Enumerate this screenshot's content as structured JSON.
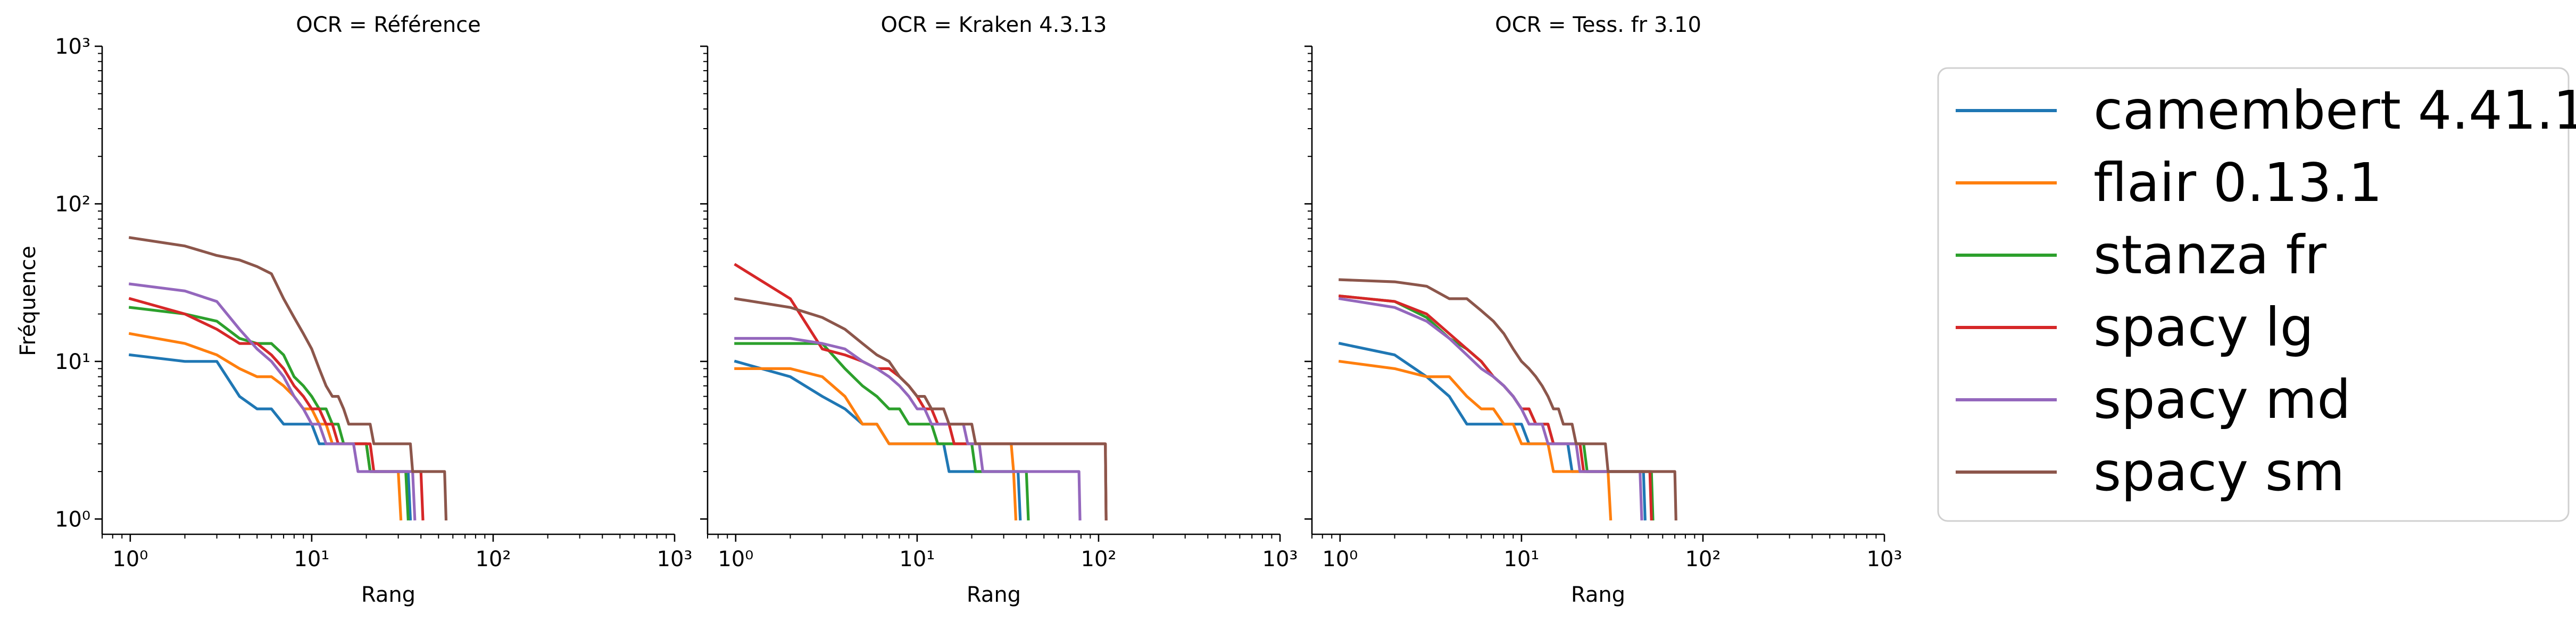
{
  "chart_data": {
    "type": "line",
    "xscale": "log",
    "yscale": "log",
    "xlim": [
      0.7,
      1000
    ],
    "ylim": [
      0.8,
      1000
    ],
    "x_ticks": [
      "10⁰",
      "10¹",
      "10²",
      "10³"
    ],
    "y_ticks": [
      "10⁰",
      "10¹",
      "10²",
      "10³"
    ],
    "ylabel": "Fréquence",
    "xlabel": "Rang",
    "grid": false,
    "legend_position": "right",
    "panels": [
      {
        "title": "OCR = Référence",
        "series": [
          {
            "name": "camembert 4.41.1",
            "color": "#1f77b4",
            "values": [
              11,
              10,
              10,
              6,
              5,
              5,
              4,
              4,
              4,
              4,
              3,
              3,
              3,
              3,
              3,
              3,
              3,
              3,
              3,
              3,
              2,
              2,
              2,
              2,
              2,
              2,
              2,
              2,
              2,
              2,
              2,
              2,
              2,
              2,
              1
            ]
          },
          {
            "name": "flair 0.13.1",
            "color": "#ff7f0e",
            "values": [
              15,
              13,
              11,
              9,
              8,
              8,
              7,
              6,
              5,
              5,
              4,
              4,
              3,
              3,
              3,
              3,
              3,
              3,
              3,
              3,
              2,
              2,
              2,
              2,
              2,
              2,
              2,
              2,
              2,
              2,
              1
            ]
          },
          {
            "name": "stanza fr",
            "color": "#2ca02c",
            "values": [
              22,
              20,
              18,
              14,
              13,
              13,
              11,
              8,
              7,
              6,
              5,
              5,
              4,
              4,
              3,
              3,
              3,
              3,
              3,
              3,
              2,
              2,
              2,
              2,
              2,
              2,
              2,
              2,
              2,
              2,
              2,
              2,
              2,
              1
            ]
          },
          {
            "name": "spacy lg",
            "color": "#d62728",
            "values": [
              25,
              20,
              16,
              13,
              13,
              11,
              9,
              7,
              6,
              5,
              5,
              4,
              4,
              3,
              3,
              3,
              3,
              3,
              3,
              3,
              3,
              2,
              2,
              2,
              2,
              2,
              2,
              2,
              2,
              2,
              2,
              2,
              2,
              2,
              2,
              2,
              2,
              2,
              2,
              2,
              1
            ]
          },
          {
            "name": "spacy md",
            "color": "#9467bd",
            "values": [
              31,
              28,
              24,
              16,
              12,
              10,
              8,
              6,
              5,
              4,
              4,
              3,
              3,
              3,
              3,
              3,
              3,
              2,
              2,
              2,
              2,
              2,
              2,
              2,
              2,
              2,
              2,
              2,
              2,
              2,
              2,
              2,
              2,
              2,
              2,
              2,
              1
            ]
          },
          {
            "name": "spacy sm",
            "color": "#8c564b",
            "values": [
              61,
              54,
              47,
              44,
              40,
              36,
              25,
              19,
              15,
              12,
              9,
              7,
              6,
              6,
              5,
              4,
              4,
              4,
              4,
              4,
              4,
              3,
              3,
              3,
              3,
              3,
              3,
              3,
              3,
              3,
              3,
              3,
              3,
              3,
              3,
              2,
              2,
              2,
              2,
              2,
              2,
              2,
              2,
              2,
              2,
              2,
              2,
              2,
              2,
              2,
              2,
              2,
              2,
              2,
              1
            ]
          }
        ]
      },
      {
        "title": "OCR = Kraken 4.3.13",
        "series": [
          {
            "name": "camembert 4.41.1",
            "color": "#1f77b4",
            "values": [
              10,
              8,
              6,
              5,
              4,
              4,
              3,
              3,
              3,
              3,
              3,
              3,
              3,
              3,
              2,
              2,
              2,
              2,
              2,
              2,
              2,
              2,
              2,
              2,
              2,
              2,
              2,
              2,
              2,
              2,
              2,
              2,
              2,
              2,
              2,
              2,
              1
            ]
          },
          {
            "name": "flair 0.13.1",
            "color": "#ff7f0e",
            "values": [
              9,
              9,
              8,
              6,
              4,
              4,
              3,
              3,
              3,
              3,
              3,
              3,
              3,
              3,
              3,
              3,
              3,
              3,
              3,
              3,
              3,
              3,
              3,
              3,
              3,
              3,
              3,
              3,
              3,
              3,
              3,
              3,
              3,
              2,
              1
            ]
          },
          {
            "name": "stanza fr",
            "color": "#2ca02c",
            "values": [
              13,
              13,
              13,
              9,
              7,
              6,
              5,
              5,
              4,
              4,
              4,
              4,
              3,
              3,
              3,
              3,
              3,
              3,
              3,
              3,
              2,
              2,
              2,
              2,
              2,
              2,
              2,
              2,
              2,
              2,
              2,
              2,
              2,
              2,
              2,
              2,
              2,
              2,
              2,
              2,
              1
            ]
          },
          {
            "name": "spacy lg",
            "color": "#d62728",
            "values": [
              41,
              25,
              12,
              11,
              10,
              9,
              9,
              8,
              7,
              6,
              5,
              5,
              4,
              4,
              4,
              3,
              3,
              3,
              3,
              3,
              3,
              3,
              3,
              3,
              3,
              3,
              3,
              3,
              3,
              3,
              3,
              3,
              3,
              3,
              3,
              3,
              3,
              3,
              3,
              3,
              3,
              3,
              3,
              3,
              3,
              3,
              3,
              3,
              3,
              3,
              3,
              3,
              3,
              3,
              3,
              3,
              3,
              3,
              3,
              3,
              3,
              3,
              3,
              3,
              3,
              3,
              3,
              3,
              3,
              3,
              3,
              3,
              3,
              3,
              3,
              3,
              3,
              3,
              3,
              3,
              3,
              3,
              3,
              3,
              3,
              3,
              3,
              3,
              3,
              3,
              3,
              3,
              3,
              3,
              3,
              3,
              3,
              3,
              3,
              3,
              3,
              3,
              3,
              3,
              3,
              3,
              3,
              3,
              3,
              1
            ]
          },
          {
            "name": "spacy md",
            "color": "#9467bd",
            "values": [
              14,
              14,
              13,
              12,
              10,
              9,
              8,
              7,
              6,
              5,
              5,
              4,
              4,
              4,
              4,
              4,
              4,
              4,
              3,
              3,
              3,
              3,
              2,
              2,
              2,
              2,
              2,
              2,
              2,
              2,
              2,
              2,
              2,
              2,
              2,
              2,
              2,
              2,
              2,
              2,
              2,
              2,
              2,
              2,
              2,
              2,
              2,
              2,
              2,
              2,
              2,
              2,
              2,
              2,
              2,
              2,
              2,
              2,
              2,
              2,
              2,
              2,
              2,
              2,
              2,
              2,
              2,
              2,
              2,
              2,
              2,
              2,
              2,
              2,
              2,
              2,
              2,
              2,
              1
            ]
          },
          {
            "name": "spacy sm",
            "color": "#8c564b",
            "values": [
              25,
              22,
              19,
              16,
              13,
              11,
              10,
              8,
              7,
              6,
              6,
              5,
              5,
              5,
              4,
              4,
              4,
              4,
              4,
              4,
              3,
              3,
              3,
              3,
              3,
              3,
              3,
              3,
              3,
              3,
              3,
              3,
              3,
              3,
              3,
              3,
              3,
              3,
              3,
              3,
              3,
              3,
              3,
              3,
              3,
              3,
              3,
              3,
              3,
              3,
              3,
              3,
              3,
              3,
              3,
              3,
              3,
              3,
              3,
              3,
              3,
              3,
              3,
              3,
              3,
              3,
              3,
              3,
              3,
              3,
              3,
              3,
              3,
              3,
              3,
              3,
              3,
              3,
              3,
              3,
              3,
              3,
              3,
              3,
              3,
              3,
              3,
              3,
              3,
              3,
              3,
              3,
              3,
              3,
              3,
              3,
              3,
              3,
              3,
              3,
              3,
              3,
              3,
              3,
              3,
              3,
              3,
              3,
              3,
              1
            ]
          }
        ]
      },
      {
        "title": "OCR = Tess. fr 3.10",
        "series": [
          {
            "name": "camembert 4.41.1",
            "color": "#1f77b4",
            "values": [
              13,
              11,
              8,
              6,
              4,
              4,
              4,
              4,
              4,
              4,
              3,
              3,
              3,
              3,
              3,
              3,
              3,
              3,
              2,
              2,
              2,
              2,
              2,
              2,
              2,
              2,
              2,
              2,
              2,
              2,
              2,
              2,
              2,
              2,
              2,
              2,
              2,
              2,
              2,
              2,
              2,
              2,
              2,
              2,
              2,
              2,
              2,
              1
            ]
          },
          {
            "name": "flair 0.13.1",
            "color": "#ff7f0e",
            "values": [
              10,
              9,
              8,
              8,
              6,
              5,
              5,
              4,
              4,
              3,
              3,
              3,
              3,
              3,
              2,
              2,
              2,
              2,
              2,
              2,
              2,
              2,
              2,
              2,
              2,
              2,
              2,
              2,
              2,
              2,
              1
            ]
          },
          {
            "name": "stanza fr",
            "color": "#2ca02c",
            "values": [
              26,
              24,
              19,
              14,
              12,
              10,
              8,
              7,
              6,
              5,
              5,
              4,
              4,
              4,
              3,
              3,
              3,
              3,
              3,
              3,
              3,
              3,
              2,
              2,
              2,
              2,
              2,
              2,
              2,
              2,
              2,
              2,
              2,
              2,
              2,
              2,
              2,
              2,
              2,
              2,
              2,
              2,
              2,
              2,
              2,
              2,
              2,
              2,
              2,
              2,
              2,
              2,
              1
            ]
          },
          {
            "name": "spacy lg",
            "color": "#d62728",
            "values": [
              26,
              24,
              20,
              15,
              12,
              10,
              8,
              7,
              6,
              5,
              5,
              4,
              4,
              4,
              3,
              3,
              3,
              3,
              3,
              3,
              3,
              2,
              2,
              2,
              2,
              2,
              2,
              2,
              2,
              2,
              2,
              2,
              2,
              2,
              2,
              2,
              2,
              2,
              2,
              2,
              2,
              2,
              2,
              2,
              2,
              2,
              2,
              2,
              2,
              2,
              2,
              1
            ]
          },
          {
            "name": "spacy md",
            "color": "#9467bd",
            "values": [
              25,
              22,
              18,
              14,
              11,
              9,
              8,
              7,
              6,
              5,
              4,
              4,
              4,
              3,
              3,
              3,
              3,
              3,
              3,
              3,
              2,
              2,
              2,
              2,
              2,
              2,
              2,
              2,
              2,
              2,
              2,
              2,
              2,
              2,
              2,
              2,
              2,
              2,
              2,
              2,
              2,
              2,
              2,
              2,
              2,
              1
            ]
          },
          {
            "name": "spacy sm",
            "color": "#8c564b",
            "values": [
              33,
              32,
              30,
              25,
              25,
              21,
              18,
              15,
              12,
              10,
              9,
              8,
              7,
              6,
              5,
              5,
              4,
              4,
              4,
              3,
              3,
              3,
              3,
              3,
              3,
              3,
              3,
              3,
              3,
              2,
              2,
              2,
              2,
              2,
              2,
              2,
              2,
              2,
              2,
              2,
              2,
              2,
              2,
              2,
              2,
              2,
              2,
              2,
              2,
              2,
              2,
              2,
              2,
              2,
              2,
              2,
              2,
              2,
              2,
              2,
              2,
              2,
              2,
              2,
              2,
              2,
              2,
              2,
              2,
              2,
              1
            ]
          }
        ]
      }
    ]
  }
}
